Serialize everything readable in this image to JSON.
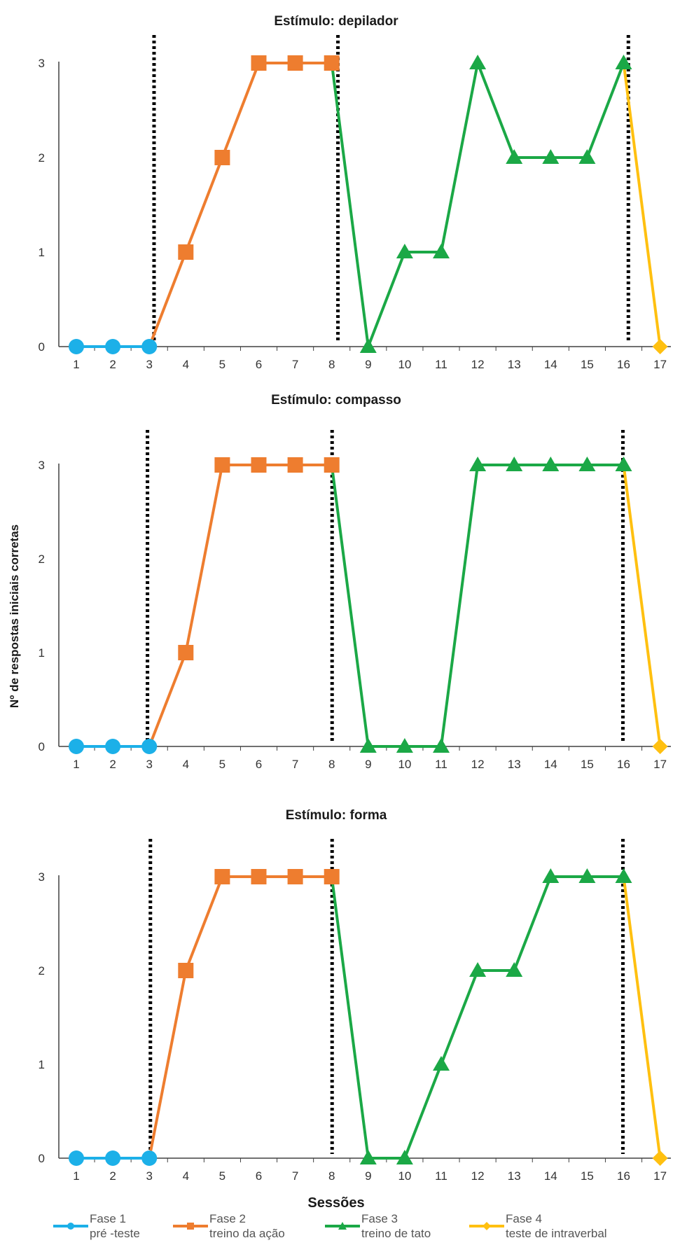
{
  "colors": {
    "fase1": "#1cb0e8",
    "fase2": "#ee7d2f",
    "fase3": "#1ba846",
    "fase4": "#ffc010",
    "phase_line": "#000000",
    "axis": "#404040"
  },
  "ylabel": "Nº de respostas iniciais corretas",
  "xlabel": "Sessões",
  "legend": [
    {
      "name": "Fase 1",
      "sub": "pré -teste",
      "marker": "circle",
      "color": "#1cb0e8"
    },
    {
      "name": "Fase 2",
      "sub": "treino da ação",
      "marker": "square",
      "color": "#ee7d2f"
    },
    {
      "name": "Fase 3",
      "sub": "treino de tato",
      "marker": "triangle",
      "color": "#1ba846"
    },
    {
      "name": "Fase 4",
      "sub": "teste de intraverbal",
      "marker": "diamond",
      "color": "#ffc010"
    }
  ],
  "chart_data": [
    {
      "type": "line",
      "title": "Estímulo: depilador",
      "x": [
        1,
        2,
        3,
        4,
        5,
        6,
        7,
        8,
        9,
        10,
        11,
        12,
        13,
        14,
        15,
        16,
        17
      ],
      "ylim": [
        0,
        3
      ],
      "yticks": [
        0,
        1,
        2,
        3
      ],
      "phase_change_after": [
        3,
        8,
        16
      ],
      "series": [
        {
          "name": "Fase 1",
          "sub": "pré -teste",
          "x": [
            1,
            2,
            3
          ],
          "values": [
            0,
            0,
            0
          ],
          "marker": "circle"
        },
        {
          "name": "Fase 2",
          "sub": "treino da ação",
          "x": [
            3,
            4,
            5,
            6,
            7,
            8
          ],
          "values": [
            0,
            1,
            2,
            3,
            3,
            3
          ],
          "marker": "square"
        },
        {
          "name": "Fase 3",
          "sub": "treino de tato",
          "x": [
            8,
            9,
            10,
            11,
            12,
            13,
            14,
            15,
            16
          ],
          "values": [
            3,
            0,
            1,
            1,
            3,
            2,
            2,
            2,
            3
          ],
          "marker": "triangle"
        },
        {
          "name": "Fase 4",
          "sub": "teste de intraverbal",
          "x": [
            16,
            17
          ],
          "values": [
            3,
            0
          ],
          "marker": "diamond"
        }
      ]
    },
    {
      "type": "line",
      "title": "Estímulo: compasso",
      "x": [
        1,
        2,
        3,
        4,
        5,
        6,
        7,
        8,
        9,
        10,
        11,
        12,
        13,
        14,
        15,
        16,
        17
      ],
      "ylim": [
        0,
        3
      ],
      "yticks": [
        0,
        1,
        2,
        3
      ],
      "phase_change_after": [
        3,
        8,
        16
      ],
      "series": [
        {
          "name": "Fase 1",
          "sub": "pré -teste",
          "x": [
            1,
            2,
            3
          ],
          "values": [
            0,
            0,
            0
          ],
          "marker": "circle"
        },
        {
          "name": "Fase 2",
          "sub": "treino da ação",
          "x": [
            3,
            4,
            5,
            6,
            7,
            8
          ],
          "values": [
            0,
            1,
            3,
            3,
            3,
            3
          ],
          "marker": "square"
        },
        {
          "name": "Fase 3",
          "sub": "treino de tato",
          "x": [
            8,
            9,
            10,
            11,
            12,
            13,
            14,
            15,
            16
          ],
          "values": [
            3,
            0,
            0,
            0,
            3,
            3,
            3,
            3,
            3
          ],
          "marker": "triangle"
        },
        {
          "name": "Fase 4",
          "sub": "teste de intraverbal",
          "x": [
            16,
            17
          ],
          "values": [
            3,
            0
          ],
          "marker": "diamond"
        }
      ]
    },
    {
      "type": "line",
      "title": "Estímulo: forma",
      "x": [
        1,
        2,
        3,
        4,
        5,
        6,
        7,
        8,
        9,
        10,
        11,
        12,
        13,
        14,
        15,
        16,
        17
      ],
      "ylim": [
        0,
        3
      ],
      "yticks": [
        0,
        1,
        2,
        3
      ],
      "phase_change_after": [
        3,
        8,
        16
      ],
      "series": [
        {
          "name": "Fase 1",
          "sub": "pré -teste",
          "x": [
            1,
            2,
            3
          ],
          "values": [
            0,
            0,
            0
          ],
          "marker": "circle"
        },
        {
          "name": "Fase 2",
          "sub": "treino da ação",
          "x": [
            3,
            4,
            5,
            6,
            7,
            8
          ],
          "values": [
            0,
            2,
            3,
            3,
            3,
            3
          ],
          "marker": "square"
        },
        {
          "name": "Fase 3",
          "sub": "treino de tato",
          "x": [
            8,
            9,
            10,
            11,
            12,
            13,
            14,
            15,
            16
          ],
          "values": [
            3,
            0,
            0,
            1,
            2,
            2,
            3,
            3,
            3
          ],
          "marker": "triangle"
        },
        {
          "name": "Fase 4",
          "sub": "teste de intraverbal",
          "x": [
            16,
            17
          ],
          "values": [
            3,
            0
          ],
          "marker": "diamond"
        }
      ]
    }
  ]
}
